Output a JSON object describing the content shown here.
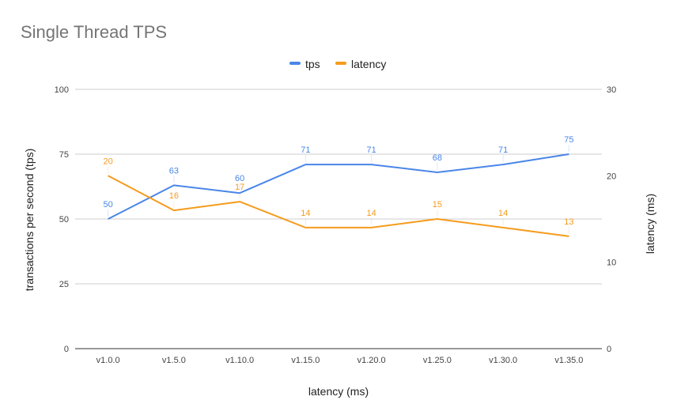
{
  "chart_data": {
    "type": "line",
    "title": "Single Thread TPS",
    "categories": [
      "v1.0.0",
      "v1.5.0",
      "v1.10.0",
      "v1.15.0",
      "v1.20.0",
      "v1.25.0",
      "v1.30.0",
      "v1.35.0"
    ],
    "series": [
      {
        "name": "tps",
        "axis": "left",
        "color": "#4a86e8",
        "values": [
          50,
          63,
          60,
          71,
          71,
          68,
          71,
          75
        ]
      },
      {
        "name": "latency",
        "axis": "right",
        "color": "#f59b1c",
        "values": [
          20,
          16,
          17,
          14,
          14,
          15,
          14,
          13
        ]
      }
    ],
    "xlabel": "latency (ms)",
    "ylabel": "transactions per second (tps)",
    "y2label": "latency (ms)",
    "ylim": [
      0,
      100
    ],
    "y2lim": [
      0,
      30
    ],
    "yticks": [
      "0",
      "25",
      "50",
      "75",
      "100"
    ],
    "y2ticks": [
      "0",
      "10",
      "20",
      "30"
    ],
    "legend": "top-center",
    "grid": true,
    "data_labels": true
  }
}
